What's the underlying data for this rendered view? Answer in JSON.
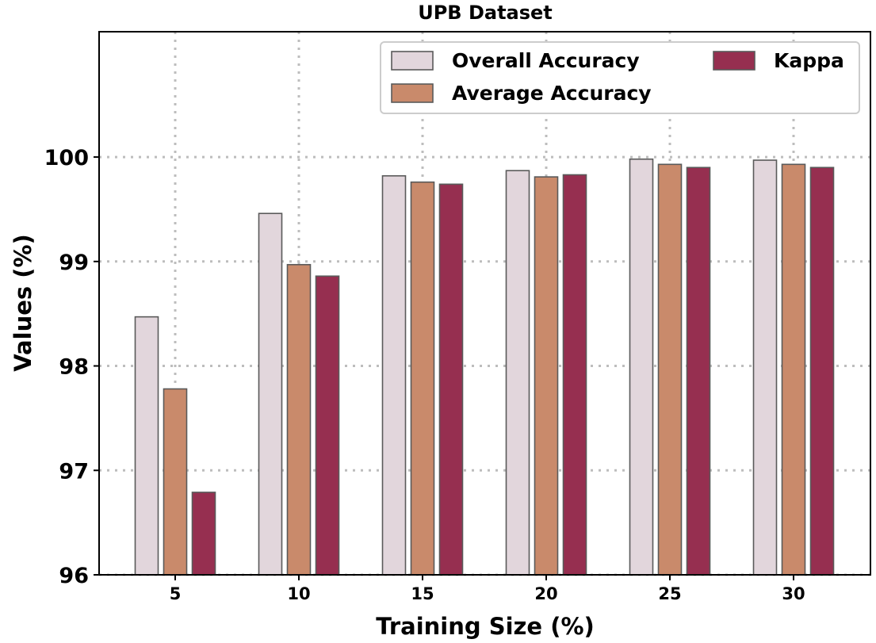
{
  "chart_data": {
    "type": "bar",
    "title": "UPB Dataset",
    "xlabel": "Training Size (%)",
    "ylabel": "Values (%)",
    "categories": [
      "5",
      "10",
      "15",
      "20",
      "25",
      "30"
    ],
    "ylim": [
      96,
      101.2
    ],
    "yticks": [
      "96",
      "97",
      "98",
      "99",
      "100"
    ],
    "grid": true,
    "legend_position": "top-right",
    "series": [
      {
        "name": "Overall Accuracy",
        "color": "#e2d6dc",
        "values": [
          98.47,
          99.46,
          99.82,
          99.87,
          99.98,
          99.97
        ]
      },
      {
        "name": "Average Accuracy",
        "color": "#c98a6b",
        "values": [
          97.78,
          98.97,
          99.76,
          99.81,
          99.93,
          99.93
        ]
      },
      {
        "name": "Kappa",
        "color": "#962f50",
        "values": [
          96.79,
          98.86,
          99.74,
          99.83,
          99.9,
          99.9
        ]
      }
    ]
  }
}
